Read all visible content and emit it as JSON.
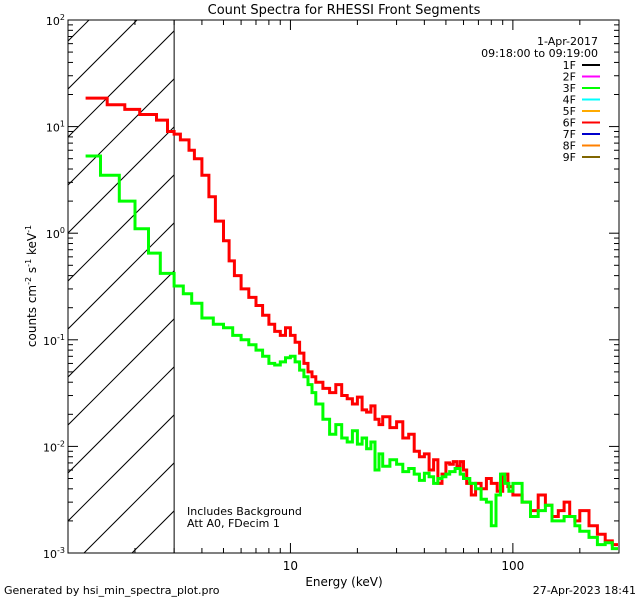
{
  "chart_data": {
    "type": "line",
    "title": "Count Spectra for RHESSI Front Segments",
    "xlabel": "Energy (keV)",
    "ylabel_parts": [
      "counts cm",
      "-2",
      " s",
      "-1",
      " keV",
      "-1"
    ],
    "xscale": "log",
    "yscale": "log",
    "xlim": [
      1,
      300
    ],
    "ylim": [
      0.001,
      100
    ],
    "x_ticks": [
      {
        "value": 10,
        "label": "10"
      },
      {
        "value": 100,
        "label": "100"
      }
    ],
    "y_ticks": [
      {
        "value": 0.001,
        "base": "10",
        "exp": "-3"
      },
      {
        "value": 0.01,
        "base": "10",
        "exp": "-2"
      },
      {
        "value": 0.1,
        "base": "10",
        "exp": "-1"
      },
      {
        "value": 1,
        "base": "10",
        "exp": "0"
      },
      {
        "value": 10,
        "base": "10",
        "exp": "1"
      },
      {
        "value": 100,
        "base": "10",
        "exp": "2"
      }
    ],
    "shaded_region": {
      "x_from": 1,
      "x_to": 3,
      "style": "diagonal-hatch"
    },
    "header": {
      "date": "1-Apr-2017",
      "time_range": "09:18:00 to 09:19:00"
    },
    "legend": [
      {
        "name": "1F",
        "color": "#000000"
      },
      {
        "name": "2F",
        "color": "#ff00ff"
      },
      {
        "name": "3F",
        "color": "#00ff00"
      },
      {
        "name": "4F",
        "color": "#00ffff"
      },
      {
        "name": "5F",
        "color": "#ffaa00"
      },
      {
        "name": "6F",
        "color": "#ff0000"
      },
      {
        "name": "7F",
        "color": "#0000cc"
      },
      {
        "name": "8F",
        "color": "#ff8000"
      },
      {
        "name": "9F",
        "color": "#806600"
      }
    ],
    "annotations": [
      "Includes Background",
      "Att A0, FDecim 1"
    ],
    "series": [
      {
        "name": "6F",
        "color": "#ff0000",
        "points": [
          [
            1.2,
            18.5
          ],
          [
            1.5,
            16
          ],
          [
            1.8,
            14.5
          ],
          [
            2.1,
            13
          ],
          [
            2.5,
            11.5
          ],
          [
            2.8,
            9
          ],
          [
            3.0,
            8.5
          ],
          [
            3.2,
            7.5
          ],
          [
            3.5,
            6.0
          ],
          [
            3.7,
            5.0
          ],
          [
            4.0,
            3.5
          ],
          [
            4.3,
            2.2
          ],
          [
            4.6,
            1.3
          ],
          [
            5.0,
            0.85
          ],
          [
            5.3,
            0.55
          ],
          [
            5.6,
            0.4
          ],
          [
            6.0,
            0.3
          ],
          [
            6.5,
            0.25
          ],
          [
            7.0,
            0.21
          ],
          [
            7.5,
            0.17
          ],
          [
            8.0,
            0.14
          ],
          [
            8.5,
            0.12
          ],
          [
            9.0,
            0.11
          ],
          [
            9.5,
            0.13
          ],
          [
            10.0,
            0.11
          ],
          [
            10.5,
            0.095
          ],
          [
            11.0,
            0.075
          ],
          [
            11.5,
            0.06
          ],
          [
            12.0,
            0.05
          ],
          [
            12.5,
            0.045
          ],
          [
            13.0,
            0.04
          ],
          [
            14.0,
            0.035
          ],
          [
            15.0,
            0.032
          ],
          [
            16.0,
            0.038
          ],
          [
            17.0,
            0.03
          ],
          [
            18.0,
            0.028
          ],
          [
            19.0,
            0.025
          ],
          [
            20.0,
            0.029
          ],
          [
            21.0,
            0.022
          ],
          [
            22.0,
            0.021
          ],
          [
            23.0,
            0.024
          ],
          [
            24.0,
            0.018
          ],
          [
            25.0,
            0.016
          ],
          [
            26.0,
            0.019
          ],
          [
            28.0,
            0.015
          ],
          [
            30.0,
            0.017
          ],
          [
            32.0,
            0.012
          ],
          [
            34.0,
            0.013
          ],
          [
            36.0,
            0.009
          ],
          [
            38.0,
            0.008
          ],
          [
            40.0,
            0.0085
          ],
          [
            42.0,
            0.006
          ],
          [
            44.0,
            0.0075
          ],
          [
            46.0,
            0.0045
          ],
          [
            48.0,
            0.0055
          ],
          [
            50.0,
            0.007
          ],
          [
            52.0,
            0.0068
          ],
          [
            54.0,
            0.0072
          ],
          [
            56.0,
            0.0065
          ],
          [
            58.0,
            0.0072
          ],
          [
            60.0,
            0.006
          ],
          [
            62.0,
            0.0045
          ],
          [
            65.0,
            0.0035
          ],
          [
            68.0,
            0.0045
          ],
          [
            72.0,
            0.004
          ],
          [
            76.0,
            0.005
          ],
          [
            80.0,
            0.0045
          ],
          [
            85.0,
            0.0038
          ],
          [
            90.0,
            0.0055
          ],
          [
            95.0,
            0.0042
          ],
          [
            100.0,
            0.0035
          ],
          [
            110.0,
            0.003
          ],
          [
            120.0,
            0.0025
          ],
          [
            130.0,
            0.0035
          ],
          [
            140.0,
            0.0028
          ],
          [
            150.0,
            0.0022
          ],
          [
            160.0,
            0.0025
          ],
          [
            170.0,
            0.003
          ],
          [
            180.0,
            0.0022
          ],
          [
            190.0,
            0.002
          ],
          [
            200.0,
            0.0025
          ],
          [
            220.0,
            0.0018
          ],
          [
            240.0,
            0.0015
          ],
          [
            260.0,
            0.0013
          ],
          [
            280.0,
            0.0012
          ]
        ]
      },
      {
        "name": "3F",
        "color": "#00ff00",
        "points": [
          [
            1.2,
            5.3
          ],
          [
            1.4,
            3.5
          ],
          [
            1.7,
            2.0
          ],
          [
            2.0,
            1.1
          ],
          [
            2.3,
            0.65
          ],
          [
            2.6,
            0.42
          ],
          [
            3.0,
            0.32
          ],
          [
            3.3,
            0.27
          ],
          [
            3.6,
            0.22
          ],
          [
            4.0,
            0.16
          ],
          [
            4.5,
            0.14
          ],
          [
            5.0,
            0.13
          ],
          [
            5.5,
            0.11
          ],
          [
            6.0,
            0.1
          ],
          [
            6.5,
            0.09
          ],
          [
            7.0,
            0.08
          ],
          [
            7.5,
            0.07
          ],
          [
            8.0,
            0.06
          ],
          [
            8.5,
            0.058
          ],
          [
            9.0,
            0.062
          ],
          [
            9.5,
            0.068
          ],
          [
            10.0,
            0.07
          ],
          [
            10.5,
            0.062
          ],
          [
            11.0,
            0.052
          ],
          [
            11.5,
            0.045
          ],
          [
            12.0,
            0.038
          ],
          [
            12.5,
            0.032
          ],
          [
            13.0,
            0.025
          ],
          [
            14.0,
            0.018
          ],
          [
            15.0,
            0.013
          ],
          [
            16.0,
            0.016
          ],
          [
            17.0,
            0.012
          ],
          [
            18.0,
            0.011
          ],
          [
            19.0,
            0.014
          ],
          [
            20.0,
            0.0105
          ],
          [
            21.0,
            0.012
          ],
          [
            22.0,
            0.0095
          ],
          [
            23.0,
            0.011
          ],
          [
            24.0,
            0.006
          ],
          [
            25.0,
            0.0085
          ],
          [
            26.0,
            0.0065
          ],
          [
            28.0,
            0.0075
          ],
          [
            30.0,
            0.0068
          ],
          [
            32.0,
            0.0058
          ],
          [
            34.0,
            0.0062
          ],
          [
            36.0,
            0.0055
          ],
          [
            38.0,
            0.0048
          ],
          [
            40.0,
            0.0056
          ],
          [
            42.0,
            0.0052
          ],
          [
            44.0,
            0.0045
          ],
          [
            46.0,
            0.005
          ],
          [
            48.0,
            0.0052
          ],
          [
            50.0,
            0.0055
          ],
          [
            52.0,
            0.0058
          ],
          [
            55.0,
            0.0062
          ],
          [
            58.0,
            0.0055
          ],
          [
            60.0,
            0.005
          ],
          [
            64.0,
            0.0045
          ],
          [
            68.0,
            0.004
          ],
          [
            72.0,
            0.0032
          ],
          [
            76.0,
            0.003
          ],
          [
            80.0,
            0.0018
          ],
          [
            84.0,
            0.0035
          ],
          [
            88.0,
            0.0055
          ],
          [
            92.0,
            0.0045
          ],
          [
            96.0,
            0.0038
          ],
          [
            100.0,
            0.0045
          ],
          [
            110.0,
            0.003
          ],
          [
            120.0,
            0.0022
          ],
          [
            130.0,
            0.0025
          ],
          [
            140.0,
            0.0028
          ],
          [
            150.0,
            0.002
          ],
          [
            170.0,
            0.0022
          ],
          [
            190.0,
            0.0018
          ],
          [
            200.0,
            0.0016
          ],
          [
            220.0,
            0.0014
          ],
          [
            240.0,
            0.0012
          ],
          [
            260.0,
            0.00125
          ],
          [
            280.0,
            0.0011
          ]
        ]
      }
    ]
  },
  "footer": {
    "left": "Generated by hsi_min_spectra_plot.pro",
    "right": "27-Apr-2023 18:41"
  }
}
